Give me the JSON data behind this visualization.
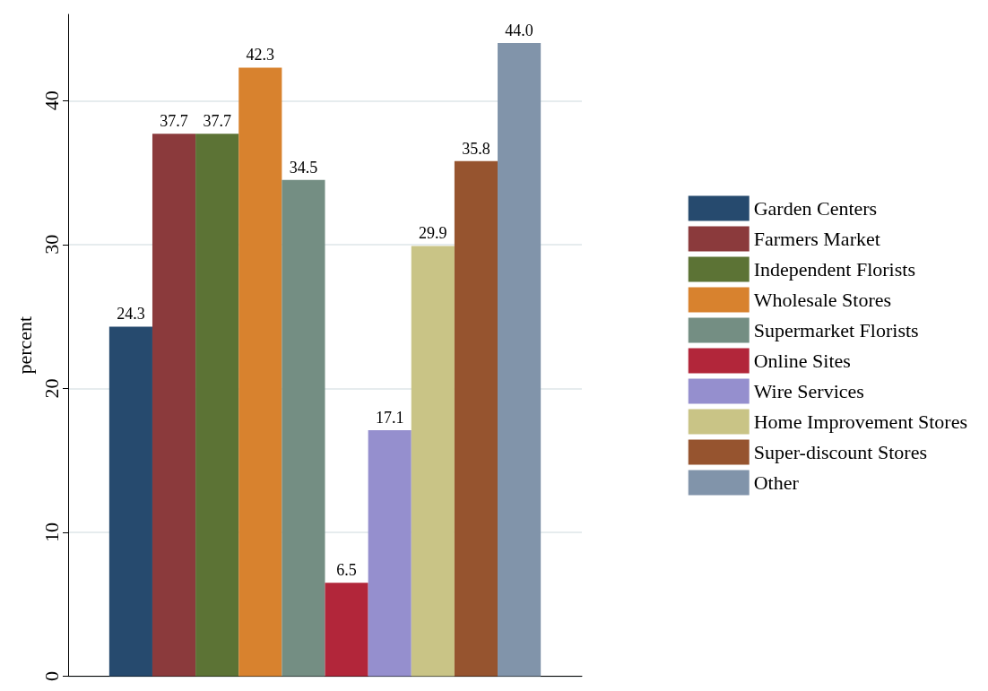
{
  "chart_data": {
    "type": "bar",
    "ylabel": "percent",
    "categories": [
      null
    ],
    "series": [
      {
        "name": "Garden Centers",
        "color": "#264a6e",
        "values": [
          24.3
        ],
        "value_labels": [
          "24.3"
        ]
      },
      {
        "name": "Farmers Market",
        "color": "#8b3a3c",
        "values": [
          37.7
        ],
        "value_labels": [
          "37.7"
        ]
      },
      {
        "name": "Independent Florists",
        "color": "#5c7335",
        "values": [
          37.7
        ],
        "value_labels": [
          "37.7"
        ]
      },
      {
        "name": "Wholesale Stores",
        "color": "#d8822e",
        "values": [
          42.3
        ],
        "value_labels": [
          "42.3"
        ]
      },
      {
        "name": "Supermarket Florists",
        "color": "#748e83",
        "values": [
          34.5
        ],
        "value_labels": [
          "34.5"
        ]
      },
      {
        "name": "Online Sites",
        "color": "#b2263a",
        "values": [
          6.5
        ],
        "value_labels": [
          "6.5"
        ]
      },
      {
        "name": "Wire Services",
        "color": "#958fce",
        "values": [
          17.1
        ],
        "value_labels": [
          "17.1"
        ]
      },
      {
        "name": "Home Improvement Stores",
        "color": "#c9c486",
        "values": [
          29.9
        ],
        "value_labels": [
          "29.9"
        ]
      },
      {
        "name": "Super-discount Stores",
        "color": "#96542f",
        "values": [
          35.8
        ],
        "value_labels": [
          "35.8"
        ]
      },
      {
        "name": "Other",
        "color": "#8194aa",
        "values": [
          44.0
        ],
        "value_labels": [
          "44.0"
        ]
      }
    ],
    "ylim": [
      0,
      46
    ],
    "yticks": [
      0,
      10,
      20,
      30,
      40
    ],
    "grid": "y",
    "legend": "right"
  }
}
